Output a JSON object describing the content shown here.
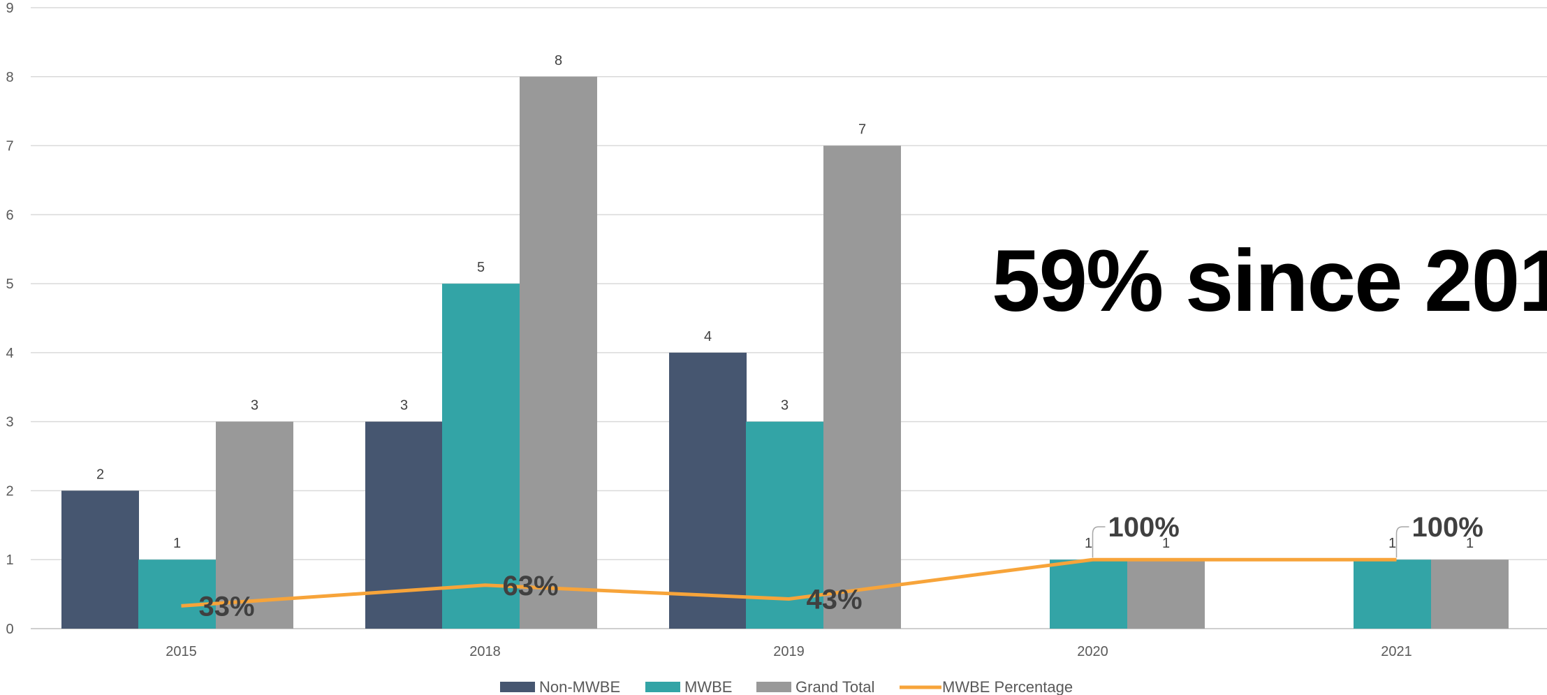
{
  "annotation": {
    "headline": "59% since 201"
  },
  "chart_data": {
    "type": "bar",
    "categories": [
      "2015",
      "2018",
      "2019",
      "2020",
      "2021"
    ],
    "series": [
      {
        "name": "Non-MWBE",
        "type": "bar",
        "color": "#465670",
        "values": [
          2,
          3,
          4,
          null,
          null
        ]
      },
      {
        "name": "MWBE",
        "type": "bar",
        "color": "#33A4A6",
        "values": [
          1,
          5,
          3,
          1,
          1
        ]
      },
      {
        "name": "Grand Total",
        "type": "bar",
        "color": "#999999",
        "values": [
          3,
          8,
          7,
          1,
          1
        ]
      },
      {
        "name": "MWBE Percentage",
        "type": "line",
        "color": "#F7A43A",
        "values": [
          0.33,
          0.63,
          0.43,
          1.0,
          1.0
        ],
        "labels": [
          "33%",
          "63%",
          "43%",
          "100%",
          "100%"
        ]
      }
    ],
    "yticks": [
      "0",
      "1",
      "2",
      "3",
      "4",
      "5",
      "6",
      "7",
      "8",
      "9"
    ],
    "ylim": [
      0,
      9
    ],
    "grid": true,
    "legend_position": "bottom"
  }
}
